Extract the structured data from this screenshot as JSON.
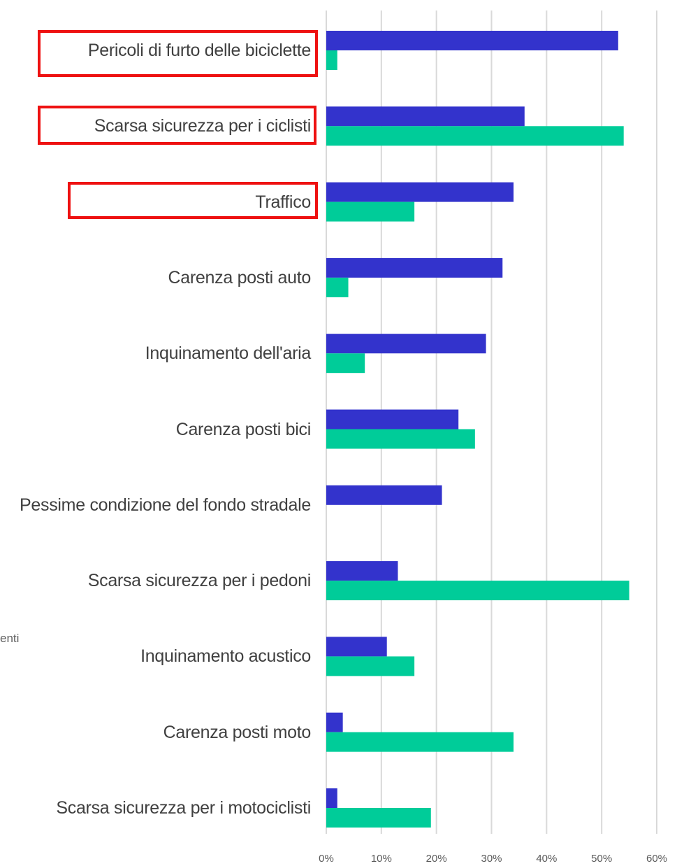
{
  "chart_data": {
    "type": "bar",
    "orientation": "horizontal",
    "side_text": "enti",
    "categories": [
      "Pericoli di furto delle biciclette",
      "Scarsa sicurezza per i ciclisti",
      "Traffico",
      "Carenza posti auto",
      "Inquinamento dell'aria",
      "Carenza posti bici",
      "Pessime condizione del fondo stradale",
      "Scarsa sicurezza per i pedoni",
      "Inquinamento acustico",
      "Carenza posti moto",
      "Scarsa sicurezza per i motociclisti"
    ],
    "series": [
      {
        "color": "#3333cc",
        "values": [
          53,
          36,
          34,
          32,
          29,
          24,
          21,
          13,
          11,
          3,
          2
        ]
      },
      {
        "color": "#00cc99",
        "values": [
          2,
          54,
          16,
          4,
          7,
          27,
          0,
          55,
          16,
          34,
          19
        ]
      }
    ],
    "xlim": [
      0,
      60
    ],
    "xticks": [
      {
        "value": 0,
        "label": "0%"
      },
      {
        "value": 10,
        "label": "10%"
      },
      {
        "value": 20,
        "label": "20%"
      },
      {
        "value": 30,
        "label": "30%"
      },
      {
        "value": 40,
        "label": "40%"
      },
      {
        "value": 50,
        "label": "50%"
      },
      {
        "value": 60,
        "label": "60%"
      }
    ],
    "grid": true
  }
}
